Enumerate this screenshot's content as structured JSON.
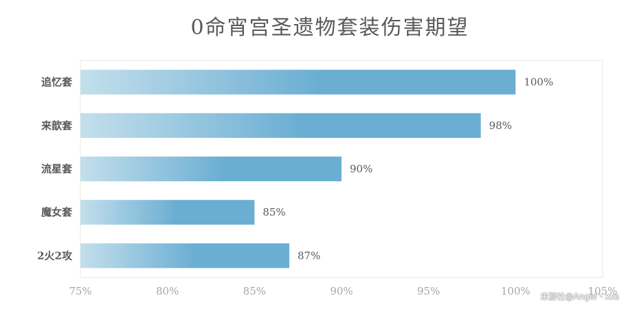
{
  "chart_data": {
    "type": "bar",
    "orientation": "horizontal",
    "title": "0命宵宫圣遗物套装伤害期望",
    "categories": [
      "追忆套",
      "来歆套",
      "流星套",
      "魔女套",
      "2火2攻"
    ],
    "values": [
      100,
      98,
      90,
      85,
      87
    ],
    "value_labels": [
      "100%",
      "98%",
      "90%",
      "85%",
      "87%"
    ],
    "xlim": [
      75,
      105
    ],
    "x_ticks": [
      75,
      80,
      85,
      90,
      95,
      100,
      105
    ],
    "x_tick_labels": [
      "75%",
      "80%",
      "85%",
      "90%",
      "95%",
      "100%",
      "105%"
    ],
    "xlabel": "",
    "ylabel": "",
    "grid": false,
    "legend": "none",
    "colors": {
      "bar_light": "#c3dfec",
      "bar_dark": "#6baed3",
      "plot_border": "#e8e8dc"
    }
  },
  "watermark": "米游社@Angel丶xxs"
}
